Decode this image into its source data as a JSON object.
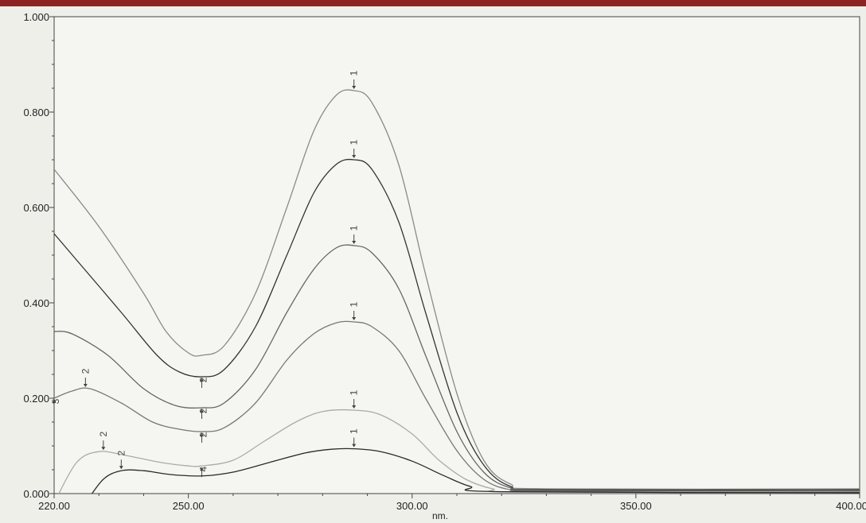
{
  "chart_data": {
    "type": "line",
    "xlabel": "nm.",
    "ylabel": "",
    "xlim": [
      220,
      400
    ],
    "ylim": [
      0,
      1.0
    ],
    "x_ticks": [
      "220.00",
      "250.00",
      "300.00",
      "350.00",
      "400.00"
    ],
    "y_ticks": [
      "0.000",
      "0.200",
      "0.400",
      "0.600",
      "0.800",
      "1.000"
    ],
    "grid": false,
    "legend": "none",
    "series": [
      {
        "color": "#8a8a8a",
        "points": [
          [
            220,
            0.68
          ],
          [
            230,
            0.56
          ],
          [
            240,
            0.42
          ],
          [
            245,
            0.34
          ],
          [
            250,
            0.295
          ],
          [
            253,
            0.29
          ],
          [
            258,
            0.31
          ],
          [
            265,
            0.42
          ],
          [
            272,
            0.6
          ],
          [
            278,
            0.76
          ],
          [
            283,
            0.835
          ],
          [
            287,
            0.845
          ],
          [
            291,
            0.82
          ],
          [
            297,
            0.69
          ],
          [
            303,
            0.46
          ],
          [
            310,
            0.21
          ],
          [
            316,
            0.07
          ],
          [
            322,
            0.02
          ],
          [
            330,
            0.01
          ],
          [
            400,
            0.01
          ]
        ]
      },
      {
        "color": "#333333",
        "points": [
          [
            220,
            0.545
          ],
          [
            225,
            0.49
          ],
          [
            235,
            0.38
          ],
          [
            243,
            0.29
          ],
          [
            248,
            0.255
          ],
          [
            253,
            0.245
          ],
          [
            258,
            0.26
          ],
          [
            265,
            0.35
          ],
          [
            272,
            0.5
          ],
          [
            278,
            0.63
          ],
          [
            283,
            0.69
          ],
          [
            287,
            0.7
          ],
          [
            291,
            0.68
          ],
          [
            297,
            0.57
          ],
          [
            303,
            0.38
          ],
          [
            310,
            0.17
          ],
          [
            316,
            0.06
          ],
          [
            322,
            0.015
          ],
          [
            330,
            0.008
          ],
          [
            400,
            0.008
          ]
        ]
      },
      {
        "color": "#666666",
        "points": [
          [
            220,
            0.34
          ],
          [
            224,
            0.335
          ],
          [
            232,
            0.29
          ],
          [
            240,
            0.22
          ],
          [
            247,
            0.185
          ],
          [
            253,
            0.18
          ],
          [
            258,
            0.19
          ],
          [
            265,
            0.26
          ],
          [
            272,
            0.38
          ],
          [
            278,
            0.47
          ],
          [
            283,
            0.515
          ],
          [
            287,
            0.52
          ],
          [
            291,
            0.505
          ],
          [
            297,
            0.43
          ],
          [
            303,
            0.29
          ],
          [
            310,
            0.13
          ],
          [
            316,
            0.045
          ],
          [
            322,
            0.012
          ],
          [
            330,
            0.006
          ],
          [
            400,
            0.006
          ]
        ]
      },
      {
        "color": "#777777",
        "points": [
          [
            220,
            0.2
          ],
          [
            224,
            0.215
          ],
          [
            228,
            0.22
          ],
          [
            235,
            0.19
          ],
          [
            242,
            0.15
          ],
          [
            248,
            0.135
          ],
          [
            253,
            0.13
          ],
          [
            258,
            0.138
          ],
          [
            265,
            0.19
          ],
          [
            272,
            0.28
          ],
          [
            278,
            0.335
          ],
          [
            283,
            0.358
          ],
          [
            287,
            0.36
          ],
          [
            291,
            0.35
          ],
          [
            297,
            0.3
          ],
          [
            303,
            0.2
          ],
          [
            310,
            0.09
          ],
          [
            316,
            0.03
          ],
          [
            322,
            0.008
          ],
          [
            330,
            0.005
          ],
          [
            400,
            0.005
          ]
        ]
      },
      {
        "color": "#aaaaaa",
        "points": [
          [
            220,
            -0.02
          ],
          [
            225,
            0.065
          ],
          [
            230,
            0.088
          ],
          [
            236,
            0.08
          ],
          [
            244,
            0.065
          ],
          [
            250,
            0.058
          ],
          [
            253,
            0.058
          ],
          [
            260,
            0.07
          ],
          [
            267,
            0.11
          ],
          [
            274,
            0.15
          ],
          [
            280,
            0.172
          ],
          [
            287,
            0.175
          ],
          [
            293,
            0.165
          ],
          [
            300,
            0.125
          ],
          [
            306,
            0.07
          ],
          [
            312,
            0.03
          ],
          [
            318,
            0.01
          ],
          [
            325,
            0.003
          ],
          [
            400,
            0.003
          ]
        ]
      },
      {
        "color": "#2a2a2a",
        "points": [
          [
            227,
            -0.02
          ],
          [
            231,
            0.03
          ],
          [
            235,
            0.048
          ],
          [
            240,
            0.048
          ],
          [
            246,
            0.04
          ],
          [
            253,
            0.037
          ],
          [
            260,
            0.045
          ],
          [
            268,
            0.065
          ],
          [
            276,
            0.085
          ],
          [
            282,
            0.093
          ],
          [
            287,
            0.094
          ],
          [
            293,
            0.088
          ],
          [
            300,
            0.068
          ],
          [
            307,
            0.038
          ],
          [
            313,
            0.015
          ],
          [
            320,
            0.004
          ],
          [
            400,
            0.002
          ]
        ]
      }
    ],
    "annotations": [
      {
        "text": "1",
        "x": 287,
        "y": 0.845,
        "dir": "down"
      },
      {
        "text": "1",
        "x": 287,
        "y": 0.7,
        "dir": "down"
      },
      {
        "text": "1",
        "x": 287,
        "y": 0.52,
        "dir": "down"
      },
      {
        "text": "1",
        "x": 287,
        "y": 0.36,
        "dir": "down"
      },
      {
        "text": "1",
        "x": 287,
        "y": 0.175,
        "dir": "down"
      },
      {
        "text": "1",
        "x": 287,
        "y": 0.094,
        "dir": "down"
      },
      {
        "text": "2",
        "x": 227,
        "y": 0.22,
        "dir": "down"
      },
      {
        "text": "2",
        "x": 231,
        "y": 0.088,
        "dir": "down"
      },
      {
        "text": "2",
        "x": 235,
        "y": 0.048,
        "dir": "down"
      },
      {
        "text": "2",
        "x": 253,
        "y": 0.245,
        "dir": "up"
      },
      {
        "text": "2",
        "x": 253,
        "y": 0.18,
        "dir": "up"
      },
      {
        "text": "2",
        "x": 253,
        "y": 0.13,
        "dir": "up"
      },
      {
        "text": "4",
        "x": 253,
        "y": 0.058,
        "dir": "up"
      },
      {
        "text": "3",
        "x": 220,
        "y": 0.2,
        "dir": "up"
      }
    ]
  }
}
